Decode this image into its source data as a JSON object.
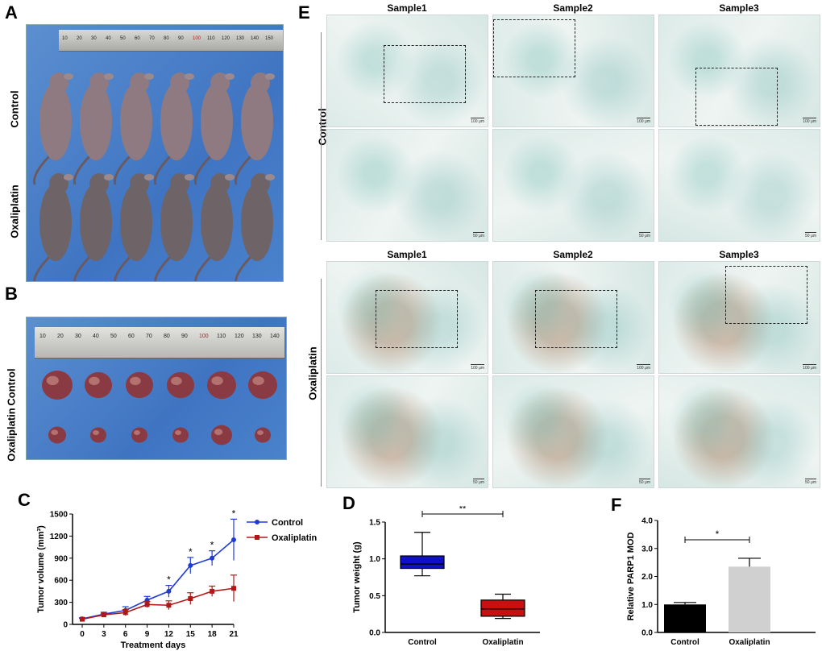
{
  "panels": {
    "A": "A",
    "B": "B",
    "C": "C",
    "D": "D",
    "E": "E",
    "F": "F"
  },
  "panel_a": {
    "row_top": "Control",
    "row_bottom": "Oxaliplatin",
    "ruler_ticks": [
      "10",
      "20",
      "30",
      "40",
      "50",
      "60",
      "70",
      "80",
      "90",
      "100",
      "110",
      "120",
      "130",
      "140",
      "150"
    ]
  },
  "panel_b": {
    "row_top": "Control",
    "row_bottom": "Oxaliplatin",
    "ruler_ticks": [
      "10",
      "20",
      "30",
      "40",
      "50",
      "60",
      "70",
      "80",
      "90",
      "100",
      "110",
      "120",
      "130",
      "140"
    ]
  },
  "panel_e": {
    "samples": [
      "Sample1",
      "Sample2",
      "Sample3"
    ],
    "groups": [
      "Control",
      "Oxaliplatin"
    ],
    "scale_low": "100 μm",
    "scale_high": "50 μm"
  },
  "colors": {
    "control_line": "#1f3bd6",
    "oxali_line": "#b01818",
    "box_control": "#1010c8",
    "box_oxali": "#c81010",
    "bar_control": "#000000",
    "bar_oxali": "#d0d0d0"
  },
  "chart_data": [
    {
      "type": "line",
      "title": "",
      "xlabel": "Treatment days",
      "ylabel": "Tumor volume (mm³)",
      "x": [
        0,
        3,
        6,
        9,
        12,
        15,
        18,
        21
      ],
      "xticks": [
        "0",
        "3",
        "6",
        "9",
        "12",
        "15",
        "18",
        "21"
      ],
      "ylim": [
        0,
        1500
      ],
      "yticks": [
        "0",
        "300",
        "600",
        "900",
        "1200",
        "1500"
      ],
      "series": [
        {
          "name": "Control",
          "values": [
            75,
            140,
            190,
            330,
            450,
            800,
            900,
            1150
          ],
          "err": [
            15,
            25,
            50,
            50,
            80,
            110,
            100,
            280
          ]
        },
        {
          "name": "Oxaliplatin",
          "values": [
            70,
            130,
            160,
            270,
            260,
            350,
            450,
            490
          ],
          "err": [
            10,
            20,
            40,
            40,
            60,
            80,
            70,
            180
          ]
        }
      ],
      "significance": [
        {
          "x": 12,
          "label": "*"
        },
        {
          "x": 15,
          "label": "*"
        },
        {
          "x": 18,
          "label": "*"
        },
        {
          "x": 21,
          "label": "*"
        }
      ]
    },
    {
      "type": "box",
      "title": "",
      "xlabel": "",
      "ylabel": "Tumor weight (g)",
      "ylim": [
        0,
        1.5
      ],
      "yticks": [
        "0.0",
        "0.5",
        "1.0",
        "1.5"
      ],
      "categories": [
        "Control",
        "Oxaliplatin"
      ],
      "boxes": [
        {
          "name": "Control",
          "min": 0.77,
          "q1": 0.87,
          "median": 0.93,
          "q3": 1.04,
          "max": 1.36
        },
        {
          "name": "Oxaliplatin",
          "min": 0.19,
          "q1": 0.22,
          "median": 0.32,
          "q3": 0.44,
          "max": 0.52
        }
      ],
      "significance": "**"
    },
    {
      "type": "bar",
      "title": "",
      "xlabel": "",
      "ylabel": "Relative PARP1 MOD",
      "ylim": [
        0,
        4.0
      ],
      "yticks": [
        "0.0",
        "1.0",
        "2.0",
        "3.0",
        "4.0"
      ],
      "categories": [
        "Control",
        "Oxaliplatin"
      ],
      "values": [
        1.0,
        2.35
      ],
      "err": [
        0.07,
        0.3
      ],
      "significance": "*"
    }
  ]
}
